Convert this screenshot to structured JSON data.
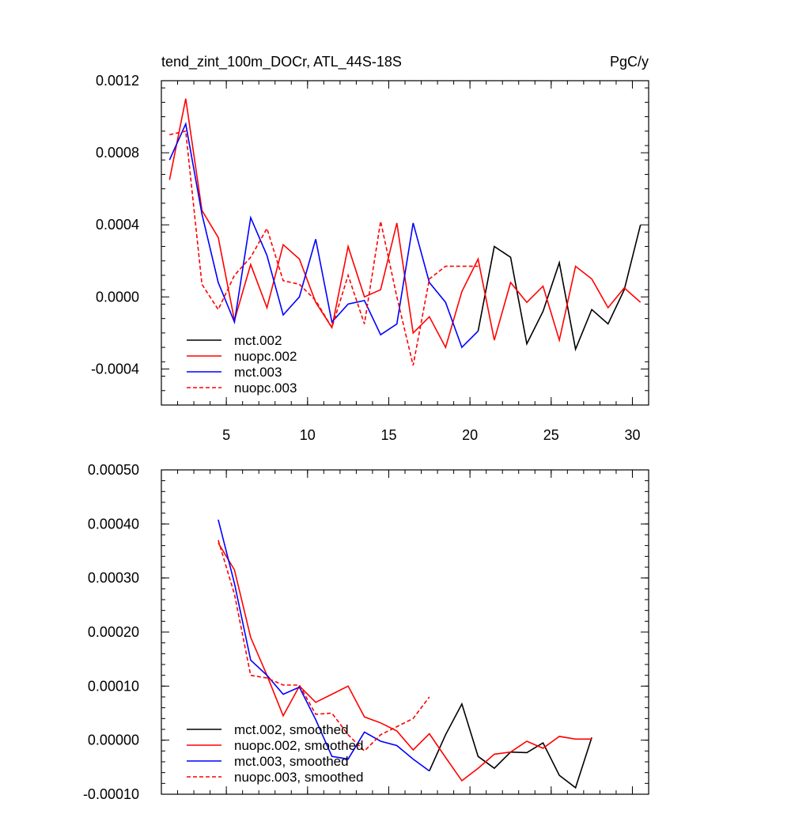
{
  "chart_data": [
    {
      "type": "line",
      "title": "tend_zint_100m_DOCr, ATL_44S-18S",
      "units": "PgC/y",
      "xlim": [
        1,
        31
      ],
      "ylim": [
        -0.0006,
        0.0012
      ],
      "xticks": [
        5,
        10,
        15,
        20,
        25,
        30
      ],
      "xtick_labels": [
        "5",
        "10",
        "15",
        "20",
        "25",
        "30"
      ],
      "yticks": [
        -0.0004,
        0.0,
        0.0004,
        0.0008,
        0.0012
      ],
      "ytick_labels": [
        "-0.0004",
        "0.0000",
        "0.0004",
        "0.0008",
        "0.0012"
      ],
      "legend_position": "bottom-left",
      "series": [
        {
          "name": "mct.002",
          "color": "#000000",
          "dash": "solid",
          "x": [
            20.5,
            21.5,
            22.5,
            23.5,
            24.5,
            25.5,
            26.5,
            27.5,
            28.5,
            29.5,
            30.5
          ],
          "y": [
            -0.00019,
            0.00028,
            0.00022,
            -0.00026,
            -8e-05,
            0.00019,
            -0.00029,
            -7e-05,
            -0.00015,
            4e-05,
            0.0004
          ]
        },
        {
          "name": "nuopc.002",
          "color": "#ff0000",
          "dash": "solid",
          "x": [
            1.5,
            2.5,
            3.5,
            4.5,
            5.5,
            6.5,
            7.5,
            8.5,
            9.5,
            10.5,
            11.5,
            12.5,
            13.5,
            14.5,
            15.5,
            16.5,
            17.5,
            18.5,
            19.5,
            20.5,
            21.5,
            22.5,
            23.5,
            24.5,
            25.5,
            26.5,
            27.5,
            28.5,
            29.5,
            30.5
          ],
          "y": [
            0.00065,
            0.0011,
            0.00048,
            0.00033,
            -0.00013,
            0.00018,
            -6e-05,
            0.00029,
            0.00021,
            -3e-05,
            -0.00017,
            0.00028,
            0.0,
            4e-05,
            0.00041,
            -0.0002,
            -0.00011,
            -0.00028,
            3e-05,
            0.00021,
            -0.00024,
            8e-05,
            -3e-05,
            6e-05,
            -0.00024,
            0.00017,
            0.0001,
            -6e-05,
            5e-05,
            -3e-05
          ]
        },
        {
          "name": "mct.003",
          "color": "#0000ff",
          "dash": "solid",
          "x": [
            1.5,
            2.5,
            3.5,
            4.5,
            5.5,
            6.5,
            7.5,
            8.5,
            9.5,
            10.5,
            11.5,
            12.5,
            13.5,
            14.5,
            15.5,
            16.5,
            17.5,
            18.5,
            19.5,
            20.5
          ],
          "y": [
            0.00076,
            0.00096,
            0.00046,
            8e-05,
            -0.00014,
            0.00044,
            0.00023,
            -0.0001,
            0.0,
            0.00032,
            -0.00014,
            -4e-05,
            -2e-05,
            -0.00021,
            -0.00015,
            0.00041,
            8e-05,
            -3e-05,
            -0.00028,
            -0.00019
          ]
        },
        {
          "name": "nuopc.003",
          "color": "#ff0000",
          "dash": "dashed",
          "x": [
            1.5,
            2.5,
            3.5,
            4.5,
            5.5,
            6.5,
            7.5,
            8.5,
            9.5,
            10.5,
            11.5,
            12.5,
            13.5,
            14.5,
            15.5,
            16.5,
            17.5,
            18.5,
            19.5,
            20.5
          ],
          "y": [
            0.0009,
            0.00092,
            7e-05,
            -7e-05,
            0.00012,
            0.00022,
            0.00038,
            9e-05,
            7e-05,
            -2e-05,
            -0.00017,
            0.00012,
            -0.00015,
            0.00042,
            0.0,
            -0.00038,
            0.0001,
            0.00017,
            0.00017,
            0.00017
          ]
        }
      ]
    },
    {
      "type": "line",
      "xlim": [
        1,
        31
      ],
      "ylim": [
        -0.0001,
        0.0005
      ],
      "xticks": [
        5,
        10,
        15,
        20,
        25,
        30
      ],
      "yticks": [
        -0.0001,
        0.0,
        0.0001,
        0.0002,
        0.0003,
        0.0004,
        0.0005
      ],
      "ytick_labels": [
        "-0.00010",
        "0.00000",
        "0.00010",
        "0.00020",
        "0.00030",
        "0.00040",
        "0.00050"
      ],
      "legend_position": "bottom-left",
      "series": [
        {
          "name": "mct.002, smoothed",
          "color": "#000000",
          "dash": "solid",
          "x": [
            17.5,
            18.5,
            19.5,
            20.5,
            21.5,
            22.5,
            23.5,
            24.5,
            25.5,
            26.5,
            27.5
          ],
          "y": [
            -5.7e-05,
            1e-05,
            6.7e-05,
            -3e-05,
            -5.2e-05,
            -2.2e-05,
            -2.3e-05,
            -5e-06,
            -6.5e-05,
            -8.8e-05,
            5e-06
          ]
        },
        {
          "name": "nuopc.002, smoothed",
          "color": "#ff0000",
          "dash": "solid",
          "x": [
            4.5,
            5.5,
            6.5,
            7.5,
            8.5,
            9.5,
            10.5,
            11.5,
            12.5,
            13.5,
            14.5,
            15.5,
            16.5,
            17.5,
            18.5,
            19.5,
            20.5,
            21.5,
            22.5,
            23.5,
            24.5,
            25.5,
            26.5,
            27.5
          ],
          "y": [
            0.000365,
            0.000315,
            0.00019,
            0.00012,
            4.5e-05,
            0.0001,
            7e-05,
            8.5e-05,
            0.0001,
            4.3e-05,
            3.2e-05,
            1.7e-05,
            -1.8e-05,
            1.2e-05,
            -3.2e-05,
            -7.5e-05,
            -5.2e-05,
            -2.6e-05,
            -2.2e-05,
            -2e-06,
            -1.5e-05,
            7e-06,
            2e-06,
            2e-06
          ]
        },
        {
          "name": "mct.003, smoothed",
          "color": "#0000ff",
          "dash": "solid",
          "x": [
            4.5,
            5.5,
            6.5,
            7.5,
            8.5,
            9.5,
            10.5,
            11.5,
            12.5,
            13.5,
            14.5,
            15.5,
            16.5,
            17.5
          ],
          "y": [
            0.000408,
            0.00029,
            0.000148,
            0.00012,
            8.5e-05,
            9.8e-05,
            3.8e-05,
            -3e-05,
            -3.5e-05,
            1.5e-05,
            -2e-06,
            -1e-05,
            -3.5e-05,
            -5.7e-05
          ]
        },
        {
          "name": "nuopc.003, smoothed",
          "color": "#ff0000",
          "dash": "dashed",
          "x": [
            4.5,
            5.5,
            6.5,
            7.5,
            8.5,
            9.5,
            10.5,
            11.5,
            12.5,
            13.5,
            14.5,
            15.5,
            16.5,
            17.5
          ],
          "y": [
            0.00037,
            0.00027,
            0.00012,
            0.000115,
            0.000102,
            0.000102,
            4.8e-05,
            5e-05,
            1e-05,
            -2e-05,
            1e-05,
            2.5e-05,
            4e-05,
            8e-05
          ]
        }
      ]
    }
  ]
}
